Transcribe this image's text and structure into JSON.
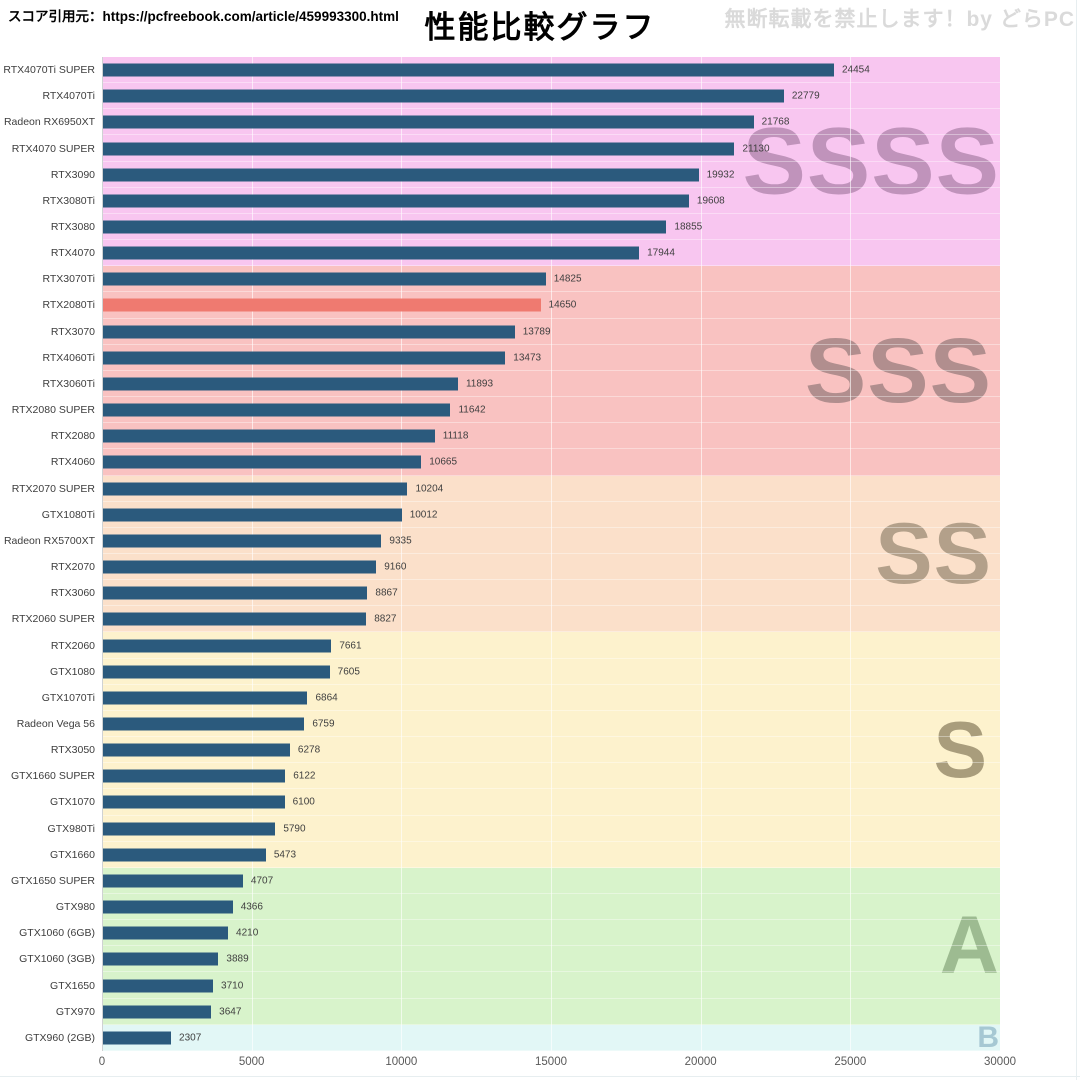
{
  "header": {
    "source": "スコア引用元：https://pcfreebook.com/article/459993300.html",
    "title": "性能比較グラフ",
    "watermark": "無断転載を禁止します！by どらPC"
  },
  "chart_data": {
    "type": "bar",
    "orientation": "horizontal",
    "title": "性能比較グラフ",
    "xlabel": "",
    "ylabel": "",
    "xlim": [
      0,
      30000
    ],
    "x_ticks": [
      0,
      5000,
      10000,
      15000,
      20000,
      25000,
      30000
    ],
    "grid": "vertical-light",
    "bar_color": "#2b5a7d",
    "highlight_color": "#ef7a70",
    "tiers": [
      {
        "label": "SSSS",
        "band_color": "#f8c6f0",
        "letter_color": "#c093bb",
        "items": [
          {
            "label": "RTX4070Ti SUPER",
            "value": 24454
          },
          {
            "label": "RTX4070Ti",
            "value": 22779
          },
          {
            "label": "Radeon RX6950XT",
            "value": 21768
          },
          {
            "label": "RTX4070 SUPER",
            "value": 21130
          },
          {
            "label": "RTX3090",
            "value": 19932
          },
          {
            "label": "RTX3080Ti",
            "value": 19608
          },
          {
            "label": "RTX3080",
            "value": 18855
          },
          {
            "label": "RTX4070",
            "value": 17944
          }
        ]
      },
      {
        "label": "SSS",
        "band_color": "#f9c2c1",
        "letter_color": "#b18e8e",
        "items": [
          {
            "label": "RTX3070Ti",
            "value": 14825
          },
          {
            "label": "RTX2080Ti",
            "value": 14650,
            "highlight": true
          },
          {
            "label": "RTX3070",
            "value": 13789
          },
          {
            "label": "RTX4060Ti",
            "value": 13473
          },
          {
            "label": "RTX3060Ti",
            "value": 11893
          },
          {
            "label": "RTX2080 SUPER",
            "value": 11642
          },
          {
            "label": "RTX2080",
            "value": 11118
          },
          {
            "label": "RTX4060",
            "value": 10665
          }
        ]
      },
      {
        "label": "SS",
        "band_color": "#fbe0ca",
        "letter_color": "#b3a08a",
        "items": [
          {
            "label": "RTX2070 SUPER",
            "value": 10204
          },
          {
            "label": "GTX1080Ti",
            "value": 10012
          },
          {
            "label": "Radeon RX5700XT",
            "value": 9335
          },
          {
            "label": "RTX2070",
            "value": 9160
          },
          {
            "label": "RTX3060",
            "value": 8867
          },
          {
            "label": "RTX2060 SUPER",
            "value": 8827
          }
        ]
      },
      {
        "label": "S",
        "band_color": "#fdf2cd",
        "letter_color": "#a99d7c",
        "items": [
          {
            "label": "RTX2060",
            "value": 7661
          },
          {
            "label": "GTX1080",
            "value": 7605
          },
          {
            "label": "GTX1070Ti",
            "value": 6864
          },
          {
            "label": "Radeon Vega 56",
            "value": 6759
          },
          {
            "label": "RTX3050",
            "value": 6278
          },
          {
            "label": "GTX1660 SUPER",
            "value": 6122
          },
          {
            "label": "GTX1070",
            "value": 6100
          },
          {
            "label": "GTX980Ti",
            "value": 5790
          },
          {
            "label": "GTX1660",
            "value": 5473
          }
        ]
      },
      {
        "label": "A",
        "band_color": "#d8f3cb",
        "letter_color": "#9dbb91",
        "items": [
          {
            "label": "GTX1650 SUPER",
            "value": 4707
          },
          {
            "label": "GTX980",
            "value": 4366
          },
          {
            "label": "GTX1060 (6GB)",
            "value": 4210
          },
          {
            "label": "GTX1060 (3GB)",
            "value": 3889
          },
          {
            "label": "GTX1650",
            "value": 3710
          },
          {
            "label": "GTX970",
            "value": 3647
          }
        ]
      },
      {
        "label": "B",
        "band_color": "#e2f7f6",
        "letter_color": "#a6c8d3",
        "items": [
          {
            "label": "GTX960 (2GB)",
            "value": 2307
          }
        ]
      }
    ]
  }
}
